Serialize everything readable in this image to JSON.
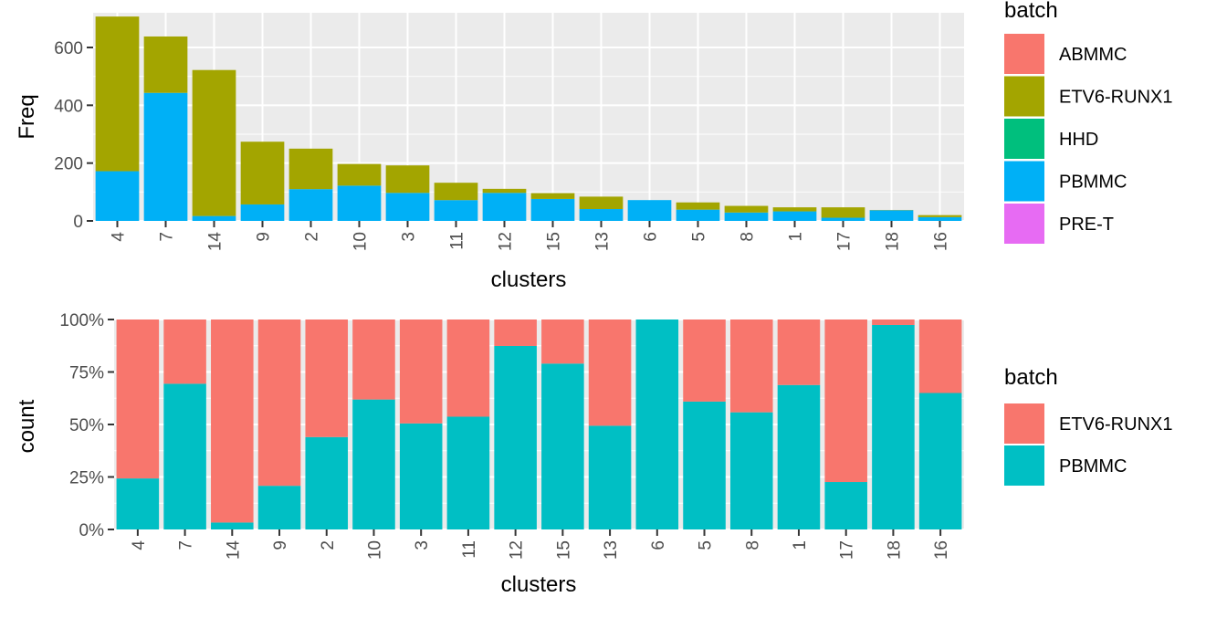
{
  "chart_data": [
    {
      "type": "bar",
      "stacked": true,
      "xlabel": "clusters",
      "ylabel": "Freq",
      "ylim": [
        0,
        720
      ],
      "yticks": [
        0,
        200,
        400,
        600
      ],
      "ytick_labels": [
        "0",
        "200",
        "400",
        "600"
      ],
      "grid": true,
      "legend_placement": "right",
      "legend_title": "batch",
      "legend": [
        {
          "name": "ABMMC",
          "color": "#F8766D"
        },
        {
          "name": "ETV6-RUNX1",
          "color": "#A3A500"
        },
        {
          "name": "HHD",
          "color": "#00BF7D"
        },
        {
          "name": "PBMMC",
          "color": "#00B0F6"
        },
        {
          "name": "PRE-T",
          "color": "#E76BF3"
        }
      ],
      "categories": [
        "4",
        "7",
        "14",
        "9",
        "2",
        "10",
        "3",
        "11",
        "12",
        "15",
        "13",
        "6",
        "5",
        "8",
        "1",
        "17",
        "18",
        "16"
      ],
      "series": [
        {
          "name": "PBMMC",
          "color": "#00B0F6",
          "values": [
            172,
            443,
            17,
            57,
            110,
            122,
            97,
            72,
            97,
            76,
            41,
            72,
            39,
            29,
            33,
            11,
            37,
            13
          ]
        },
        {
          "name": "ETV6-RUNX1",
          "color": "#A3A500",
          "values": [
            535,
            195,
            505,
            217,
            140,
            75,
            95,
            60,
            14,
            20,
            43,
            0,
            25,
            23,
            14,
            36,
            1,
            7
          ]
        }
      ]
    },
    {
      "type": "bar",
      "stacked": true,
      "normalized": true,
      "xlabel": "clusters",
      "ylabel": "count",
      "ylim": [
        0,
        1
      ],
      "yticks": [
        0,
        0.25,
        0.5,
        0.75,
        1
      ],
      "ytick_labels": [
        "0%",
        "25%",
        "50%",
        "75%",
        "100%"
      ],
      "grid": true,
      "legend_placement": "right",
      "legend_title": "batch",
      "legend": [
        {
          "name": "ETV6-RUNX1",
          "color": "#F8766D"
        },
        {
          "name": "PBMMC",
          "color": "#00BFC4"
        }
      ],
      "categories": [
        "4",
        "7",
        "14",
        "9",
        "2",
        "10",
        "3",
        "11",
        "12",
        "15",
        "13",
        "6",
        "5",
        "8",
        "1",
        "17",
        "18",
        "16"
      ],
      "series": [
        {
          "name": "PBMMC",
          "color": "#00BFC4",
          "values": [
            0.243,
            0.694,
            0.033,
            0.208,
            0.44,
            0.619,
            0.505,
            0.537,
            0.874,
            0.79,
            0.494,
            1.0,
            0.609,
            0.558,
            0.688,
            0.226,
            0.974,
            0.65
          ]
        },
        {
          "name": "ETV6-RUNX1",
          "color": "#F8766D",
          "values": [
            0.757,
            0.306,
            0.967,
            0.792,
            0.56,
            0.381,
            0.495,
            0.463,
            0.126,
            0.21,
            0.506,
            0.0,
            0.391,
            0.442,
            0.312,
            0.774,
            0.026,
            0.35
          ]
        }
      ]
    }
  ]
}
